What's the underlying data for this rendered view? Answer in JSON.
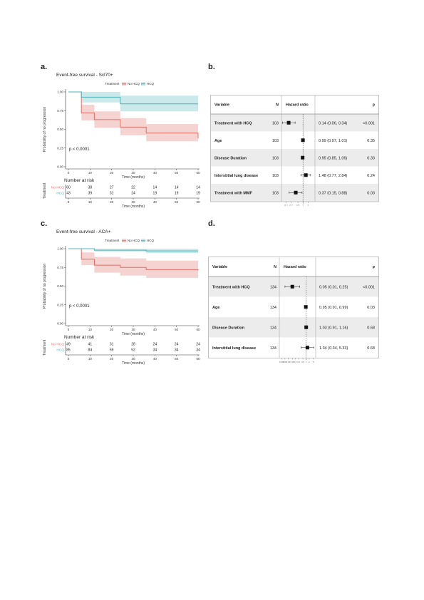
{
  "panels": {
    "a": "a.",
    "b": "b.",
    "c": "c.",
    "d": "d."
  },
  "km_common": {
    "legend_title": "Treatment",
    "legend_no_hcq": "No HCQ",
    "legend_hcq": "HCQ",
    "ylabel": "Probability of no progression",
    "xlabel": "Time (months)",
    "risk_title": "Number at risk",
    "risk_ylabel": "Treatment",
    "risk_row_no_hcq": "No HCQ",
    "risk_row_hcq": "HCQ",
    "colors": {
      "no_hcq": "#e0706a",
      "no_hcq_band": "#f2c4c1",
      "hcq": "#4fb3b8",
      "hcq_band": "#b8e2e4"
    }
  },
  "forest_common": {
    "col_variable": "Variable",
    "col_n": "N",
    "col_hr": "Hazard ratio",
    "col_p": "p"
  },
  "chart_data": [
    {
      "type": "line",
      "id": "km-scl70",
      "title": "Event-free survival - Scl70+",
      "xlim": [
        0,
        60
      ],
      "ylim": [
        0,
        1
      ],
      "xticks": [
        "0",
        "10",
        "20",
        "30",
        "40",
        "50",
        "60"
      ],
      "yticks": [
        "0.00",
        "0.25",
        "0.50",
        "0.75",
        "1.00"
      ],
      "pvalue": "p < 0.0001",
      "series": [
        {
          "name": "No HCQ",
          "steps": [
            [
              0,
              1.0
            ],
            [
              6,
              0.72
            ],
            [
              12,
              0.63
            ],
            [
              24,
              0.53
            ],
            [
              36,
              0.45
            ],
            [
              60,
              0.38
            ]
          ],
          "lower": [
            [
              0,
              1.0
            ],
            [
              6,
              0.62
            ],
            [
              12,
              0.52
            ],
            [
              24,
              0.42
            ],
            [
              36,
              0.34
            ],
            [
              60,
              0.27
            ]
          ],
          "upper": [
            [
              0,
              1.0
            ],
            [
              6,
              0.83
            ],
            [
              12,
              0.74
            ],
            [
              24,
              0.65
            ],
            [
              36,
              0.57
            ],
            [
              60,
              0.5
            ]
          ]
        },
        {
          "name": "HCQ",
          "steps": [
            [
              0,
              1.0
            ],
            [
              6,
              0.93
            ],
            [
              24,
              0.84
            ],
            [
              60,
              0.84
            ]
          ],
          "lower": [
            [
              0,
              1.0
            ],
            [
              6,
              0.86
            ],
            [
              24,
              0.74
            ],
            [
              60,
              0.74
            ]
          ],
          "upper": [
            [
              0,
              1.0
            ],
            [
              6,
              1.0
            ],
            [
              24,
              0.95
            ],
            [
              60,
              0.95
            ]
          ]
        }
      ],
      "risk": {
        "no_hcq": [
          "60",
          "38",
          "27",
          "22",
          "14",
          "14",
          "14"
        ],
        "hcq": [
          "43",
          "39",
          "31",
          "24",
          "19",
          "19",
          "19"
        ]
      }
    },
    {
      "type": "line",
      "id": "km-aca",
      "title": "Event-free survival - ACA+",
      "xlim": [
        0,
        60
      ],
      "ylim": [
        0,
        1
      ],
      "xticks": [
        "0",
        "10",
        "20",
        "30",
        "40",
        "50",
        "60"
      ],
      "yticks": [
        "0.00",
        "0.25",
        "0.50",
        "0.75",
        "1.00"
      ],
      "pvalue": "p < 0.0001",
      "series": [
        {
          "name": "No HCQ",
          "steps": [
            [
              0,
              1.0
            ],
            [
              6,
              0.86
            ],
            [
              12,
              0.78
            ],
            [
              24,
              0.75
            ],
            [
              36,
              0.72
            ],
            [
              60,
              0.71
            ]
          ],
          "lower": [
            [
              0,
              1.0
            ],
            [
              6,
              0.78
            ],
            [
              12,
              0.68
            ],
            [
              24,
              0.64
            ],
            [
              36,
              0.61
            ],
            [
              60,
              0.59
            ]
          ],
          "upper": [
            [
              0,
              1.0
            ],
            [
              6,
              0.95
            ],
            [
              12,
              0.89
            ],
            [
              24,
              0.87
            ],
            [
              36,
              0.84
            ],
            [
              60,
              0.84
            ]
          ]
        },
        {
          "name": "HCQ",
          "steps": [
            [
              0,
              1.0
            ],
            [
              12,
              0.98
            ],
            [
              36,
              0.97
            ],
            [
              60,
              0.97
            ]
          ],
          "lower": [
            [
              0,
              1.0
            ],
            [
              12,
              0.96
            ],
            [
              36,
              0.94
            ],
            [
              60,
              0.94
            ]
          ],
          "upper": [
            [
              0,
              1.0
            ],
            [
              12,
              1.0
            ],
            [
              36,
              1.0
            ],
            [
              60,
              1.0
            ]
          ]
        }
      ],
      "risk": {
        "no_hcq": [
          "49",
          "41",
          "31",
          "28",
          "24",
          "24",
          "24"
        ],
        "hcq": [
          "85",
          "84",
          "59",
          "52",
          "34",
          "34",
          "34"
        ]
      }
    },
    {
      "type": "forest",
      "id": "forest-scl70",
      "x_scale": "log",
      "xlim": [
        0.07,
        3.5
      ],
      "xticks": [
        0.1,
        0.2,
        0.5,
        1,
        2
      ],
      "xtick_labels": [
        "0.1",
        "0.2",
        "0.5",
        "1",
        "2"
      ],
      "rows": [
        {
          "variable": "Treatment with HCQ",
          "n": "103",
          "hr": 0.14,
          "lo": 0.06,
          "hi": 0.34,
          "ci_text": "0.14 (0.06, 0.34)",
          "p": "<0.001"
        },
        {
          "variable": "Age",
          "n": "103",
          "hr": 0.99,
          "lo": 0.97,
          "hi": 1.01,
          "ci_text": "0.99 (0.97, 1.01)",
          "p": "0.35"
        },
        {
          "variable": "Disease Duration",
          "n": "103",
          "hr": 0.95,
          "lo": 0.85,
          "hi": 1.06,
          "ci_text": "0.95 (0.85, 1.06)",
          "p": "0.33"
        },
        {
          "variable": "Interstitial lung disease",
          "n": "103",
          "hr": 1.48,
          "lo": 0.77,
          "hi": 2.84,
          "ci_text": "1.48 (0.77, 2.84)",
          "p": "0.24"
        },
        {
          "variable": "Treatment with MMF",
          "n": "103",
          "hr": 0.37,
          "lo": 0.15,
          "hi": 0.88,
          "ci_text": "0.37 (0.15, 0.88)",
          "p": "0.03"
        }
      ]
    },
    {
      "type": "forest",
      "id": "forest-aca",
      "x_scale": "log",
      "xlim": [
        0.004,
        7
      ],
      "xticks": [
        0.005,
        0.01,
        0.02,
        0.05,
        0.1,
        0.2,
        0.5,
        1,
        2,
        5
      ],
      "xtick_labels": [
        "0.005",
        "0.01",
        "0.02",
        "0.05",
        "0.1",
        "0.2",
        "0.5",
        "1",
        "2",
        "5"
      ],
      "rows": [
        {
          "variable": "Treatment with HCQ",
          "n": "134",
          "hr": 0.05,
          "lo": 0.01,
          "hi": 0.25,
          "ci_text": "0.05 (0.01, 0.25)",
          "p": "<0.001"
        },
        {
          "variable": "Age",
          "n": "134",
          "hr": 0.95,
          "lo": 0.91,
          "hi": 0.99,
          "ci_text": "0.95 (0.91, 0.99)",
          "p": "0.03"
        },
        {
          "variable": "Disease Duration",
          "n": "134",
          "hr": 1.03,
          "lo": 0.91,
          "hi": 1.16,
          "ci_text": "1.03 (0.91, 1.16)",
          "p": "0.68"
        },
        {
          "variable": "Interstitial lung disease",
          "n": "134",
          "hr": 1.34,
          "lo": 0.34,
          "hi": 5.33,
          "ci_text": "1.34 (0.34, 5.33)",
          "p": "0.68"
        }
      ]
    }
  ]
}
